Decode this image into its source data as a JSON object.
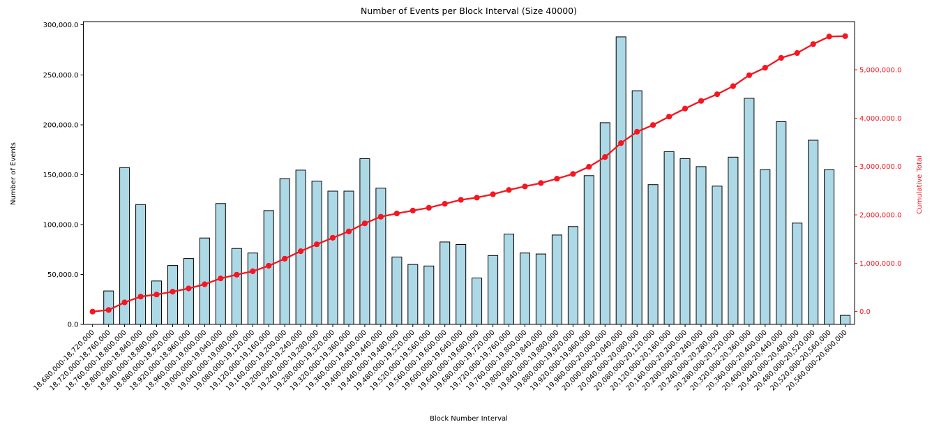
{
  "chart_data": {
    "type": "bar+line",
    "title": "Number of Events per Block Interval (Size 40000)",
    "xlabel": "Block Number Interval",
    "ylabel": "Number of Events",
    "y2label": "Cumulative Total",
    "grid": false,
    "legend": false,
    "x_tick_rotation": 45,
    "left_ylim": [
      0,
      303000
    ],
    "right_ylim": [
      -264000,
      6000000
    ],
    "colors": {
      "bar_fill": "#ADD8E6",
      "bar_edge": "#000000",
      "line_red": "#f5161f",
      "text_black": "#000000",
      "background": "#ffffff"
    },
    "left_axis": {
      "tick_values": [
        0,
        50000,
        100000,
        150000,
        200000,
        250000,
        300000
      ],
      "tick_labels": [
        "0.0",
        "50,000.0",
        "100,000.0",
        "150,000.0",
        "200,000.0",
        "250,000.0",
        "300,000.0"
      ]
    },
    "right_axis": {
      "tick_values": [
        0,
        1000000,
        2000000,
        3000000,
        4000000,
        5000000
      ],
      "tick_labels": [
        "0.0",
        "1,000,000.0",
        "2,000,000.0",
        "3,000,000.0",
        "4,000,000.0",
        "5,000,000.0"
      ]
    },
    "categories": [
      "18,680,000-18,720,000",
      "18,720,000-18,760,000",
      "18,760,000-18,800,000",
      "18,800,000-18,840,000",
      "18,840,000-18,880,000",
      "18,880,000-18,920,000",
      "18,920,000-18,960,000",
      "18,960,000-19,000,000",
      "19,000,000-19,040,000",
      "19,040,000-19,080,000",
      "19,080,000-19,120,000",
      "19,120,000-19,160,000",
      "19,160,000-19,200,000",
      "19,200,000-19,240,000",
      "19,240,000-19,280,000",
      "19,280,000-19,320,000",
      "19,320,000-19,360,000",
      "19,360,000-19,400,000",
      "19,400,000-19,440,000",
      "19,440,000-19,480,000",
      "19,480,000-19,520,000",
      "19,520,000-19,560,000",
      "19,560,000-19,600,000",
      "19,600,000-19,640,000",
      "19,640,000-19,680,000",
      "19,680,000-19,720,000",
      "19,720,000-19,760,000",
      "19,760,000-19,800,000",
      "19,800,000-19,840,000",
      "19,840,000-19,880,000",
      "19,880,000-19,920,000",
      "19,920,000-19,960,000",
      "19,960,000-20,000,000",
      "20,000,000-20,040,000",
      "20,040,000-20,080,000",
      "20,080,000-20,120,000",
      "20,120,000-20,160,000",
      "20,160,000-20,200,000",
      "20,200,000-20,240,000",
      "20,240,000-20,280,000",
      "20,280,000-20,320,000",
      "20,320,000-20,360,000",
      "20,360,000-20,400,000",
      "20,400,000-20,440,000",
      "20,440,000-20,480,000",
      "20,480,000-20,520,000",
      "20,520,000-20,560,000",
      "20,560,000-20,600,000"
    ],
    "series": [
      {
        "name": "Number of Events",
        "type": "bar",
        "axis": "left",
        "values": [
          0,
          33500,
          157000,
          120000,
          43500,
          59000,
          66000,
          86500,
          121000,
          76000,
          71500,
          114000,
          146000,
          154500,
          143500,
          133500,
          133500,
          166000,
          136500,
          67500,
          60000,
          58500,
          82500,
          80000,
          46500,
          69000,
          90500,
          71500,
          70500,
          89500,
          98000,
          149000,
          202000,
          288000,
          234000,
          140000,
          173000,
          166000,
          158000,
          138500,
          167500,
          226500,
          155000,
          203000,
          101500,
          184500,
          155000,
          9000
        ]
      },
      {
        "name": "Cumulative Total",
        "type": "line",
        "axis": "right",
        "values": [
          0,
          33500,
          190500,
          310500,
          354000,
          413000,
          479000,
          565500,
          686500,
          762500,
          834000,
          948000,
          1094000,
          1248500,
          1392000,
          1525500,
          1659000,
          1825000,
          1961500,
          2029000,
          2089000,
          2147500,
          2230000,
          2310000,
          2356500,
          2425500,
          2516000,
          2587500,
          2658000,
          2747500,
          2845500,
          2994500,
          3196500,
          3484500,
          3718500,
          3858500,
          4031500,
          4197500,
          4355500,
          4494000,
          4661500,
          4888000,
          5043000,
          5246000,
          5347500,
          5532000,
          5687000,
          5696000
        ]
      }
    ]
  }
}
